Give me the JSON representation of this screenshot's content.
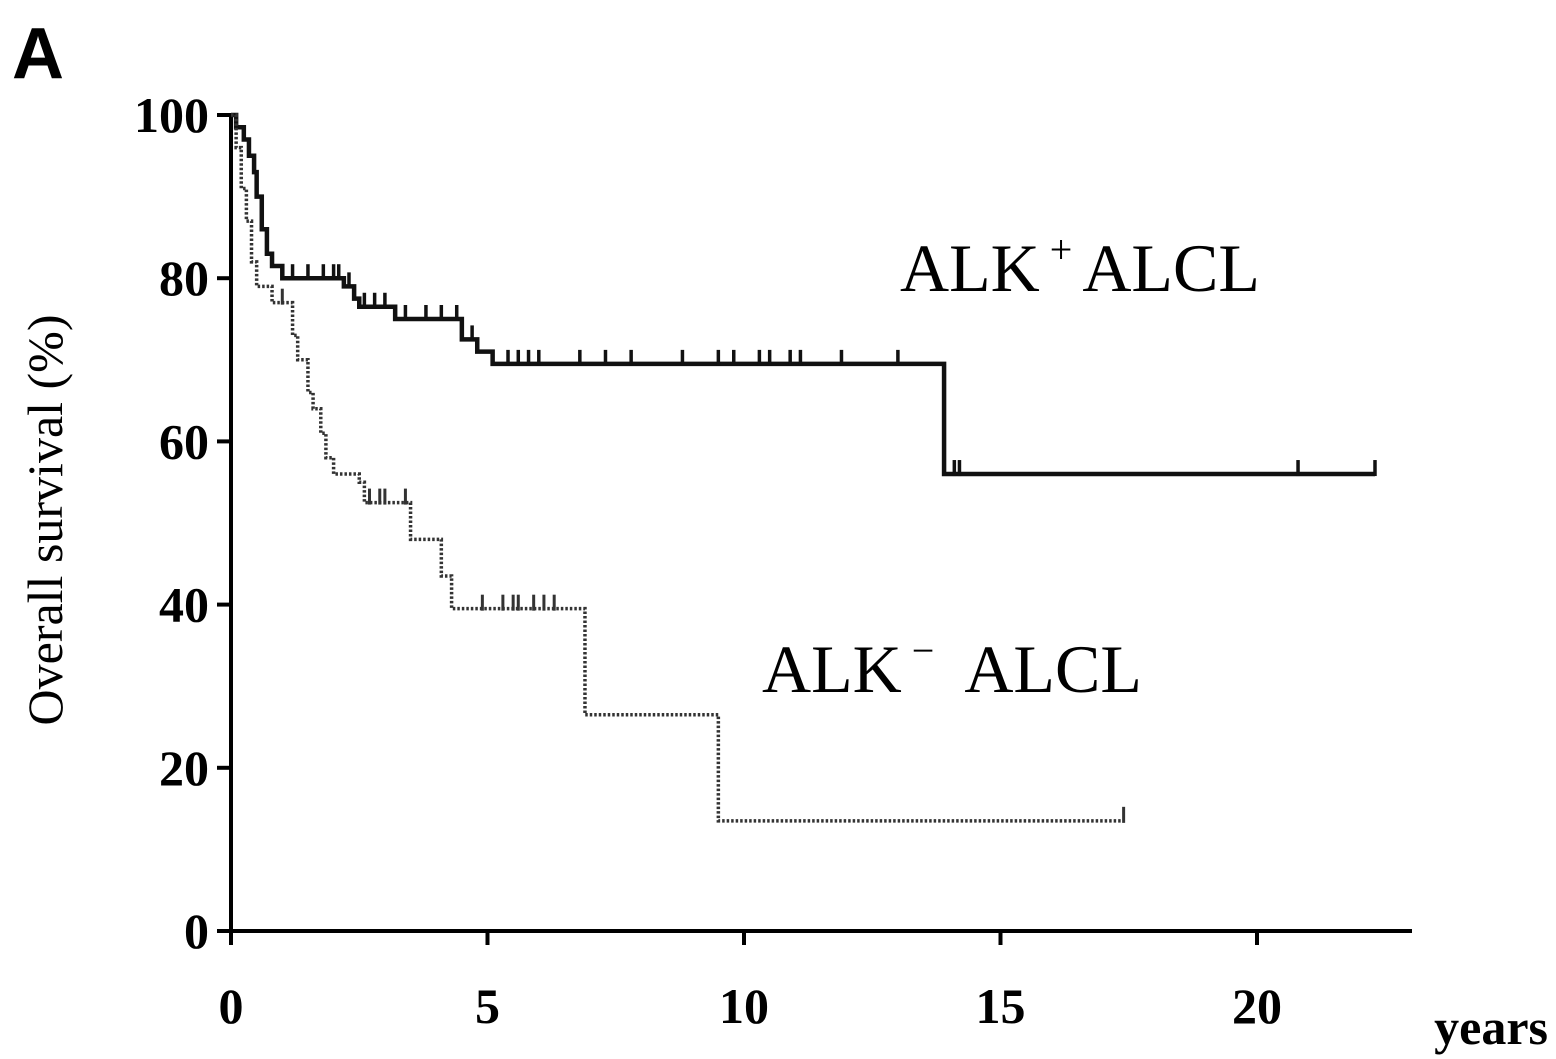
{
  "chart_data": {
    "type": "line",
    "panel_label": "A",
    "ylabel": "Overall survival (%)",
    "x_unit_label": "years",
    "xlim": [
      0,
      23
    ],
    "ylim": [
      0,
      100
    ],
    "x_ticks": [
      0,
      5,
      10,
      15,
      20
    ],
    "y_ticks": [
      0,
      20,
      40,
      60,
      80,
      100
    ],
    "x_tick_labels": [
      "0",
      "5",
      "10",
      "15",
      "20"
    ],
    "y_tick_labels": [
      "0",
      "20",
      "40",
      "60",
      "80",
      "100"
    ],
    "grid": false,
    "series": [
      {
        "name": "ALK⁺ ALCL",
        "label_base": "ALK",
        "label_sup": "+",
        "label_suffix": "ALCL",
        "style": "solid",
        "color": "#111111",
        "steps": [
          [
            0,
            100
          ],
          [
            0.1,
            98.5
          ],
          [
            0.25,
            97
          ],
          [
            0.35,
            95
          ],
          [
            0.45,
            93
          ],
          [
            0.5,
            90
          ],
          [
            0.6,
            86
          ],
          [
            0.7,
            83
          ],
          [
            0.8,
            81.5
          ],
          [
            1.0,
            80
          ],
          [
            2.2,
            79
          ],
          [
            2.4,
            77.5
          ],
          [
            2.5,
            76.5
          ],
          [
            3.2,
            75
          ],
          [
            4.5,
            72.5
          ],
          [
            4.8,
            71
          ],
          [
            5.1,
            69.5
          ],
          [
            13.9,
            69.5
          ],
          [
            13.9,
            56
          ],
          [
            22.3,
            56
          ]
        ],
        "censor_times": [
          1.2,
          1.5,
          1.8,
          2.0,
          2.1,
          2.3,
          2.6,
          2.8,
          3.0,
          3.4,
          3.8,
          4.1,
          4.4,
          4.7,
          5.4,
          5.6,
          5.8,
          6.0,
          6.8,
          7.3,
          7.8,
          8.8,
          9.5,
          9.8,
          10.3,
          10.5,
          10.9,
          11.1,
          11.9,
          13.0,
          14.1,
          14.2,
          20.8,
          22.3
        ]
      },
      {
        "name": "ALK⁻ ALCL",
        "label_base": "ALK",
        "label_sup": "−",
        "label_suffix": "ALCL",
        "style": "dotted",
        "color": "#333333",
        "steps": [
          [
            0,
            100
          ],
          [
            0.1,
            96
          ],
          [
            0.2,
            91
          ],
          [
            0.3,
            87
          ],
          [
            0.4,
            82
          ],
          [
            0.5,
            79
          ],
          [
            0.8,
            77
          ],
          [
            1.2,
            73
          ],
          [
            1.3,
            70
          ],
          [
            1.5,
            66
          ],
          [
            1.6,
            64
          ],
          [
            1.75,
            61
          ],
          [
            1.85,
            58
          ],
          [
            2.0,
            56
          ],
          [
            2.5,
            55
          ],
          [
            2.6,
            52.5
          ],
          [
            3.5,
            48
          ],
          [
            4.1,
            43.5
          ],
          [
            4.3,
            39.5
          ],
          [
            6.9,
            39.5
          ],
          [
            6.9,
            26.5
          ],
          [
            9.5,
            26.5
          ],
          [
            9.5,
            13.5
          ],
          [
            17.4,
            13.5
          ]
        ],
        "censor_times": [
          1.0,
          2.7,
          2.9,
          3.0,
          3.4,
          4.9,
          5.3,
          5.5,
          5.6,
          5.9,
          6.1,
          6.3,
          17.4
        ]
      }
    ]
  }
}
